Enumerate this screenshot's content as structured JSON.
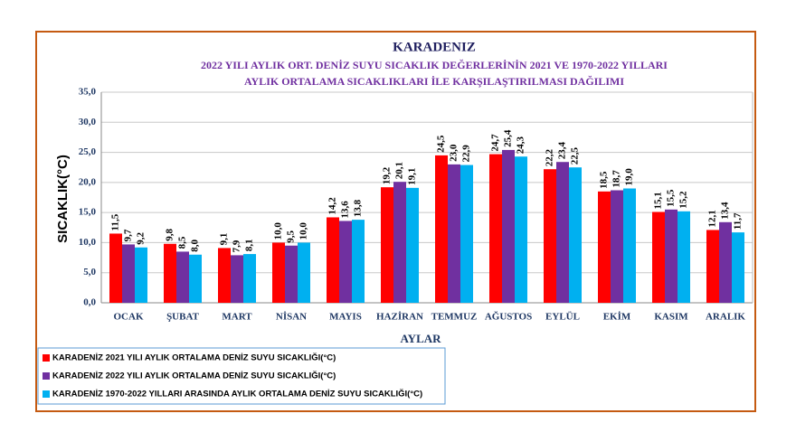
{
  "chart_data": {
    "type": "bar",
    "title": "KARADENIZ",
    "subtitle": [
      "2022 YILI AYLIK ORT. DENİZ SUYU SICAKLIK DEĞERLERİNİN 2021 VE 1970-2022  YILLARI",
      "AYLIK ORTALAMA SICAKLIKLARI İLE KARŞILAŞTIRILMASI DAĞILIMI"
    ],
    "x_label": "AYLAR",
    "y_label": "SICAKLIK(°C)",
    "categories": [
      "OCAK",
      "ŞUBAT",
      "MART",
      "NİSAN",
      "MAYIS",
      "HAZİRAN",
      "TEMMUZ",
      "AĞUSTOS",
      "EYLÜL",
      "EKİM",
      "KASIM",
      "ARALIK"
    ],
    "series": [
      {
        "name": "KARADENİZ  2021 YILI AYLIK ORTALAMA DENİZ SUYU SICAKLIĞI(°C)",
        "color": "#ff0000",
        "values": [
          11.5,
          9.8,
          9.1,
          10.0,
          14.2,
          19.2,
          24.5,
          24.7,
          22.2,
          18.5,
          15.1,
          12.1
        ],
        "value_labels": [
          "11,5",
          "9,8",
          "9,1",
          "10,0",
          "14,2",
          "19,2",
          "24,5",
          "24,7",
          "22,2",
          "18,5",
          "15,1",
          "12,1"
        ]
      },
      {
        "name": "KARADENİZ 2022 YILI AYLIK ORTALAMA DENİZ SUYU SICAKLIĞI(°C)",
        "color": "#7030a0",
        "values": [
          9.7,
          8.5,
          7.9,
          9.5,
          13.6,
          20.1,
          23.0,
          25.4,
          23.4,
          18.7,
          15.5,
          13.4
        ],
        "value_labels": [
          "9,7",
          "8,5",
          "7,9",
          "9,5",
          "13,6",
          "20,1",
          "23,0",
          "25,4",
          "23,4",
          "18,7",
          "15,5",
          "13,4"
        ]
      },
      {
        "name": "KARADENİZ  1970-2022 YILLARI ARASINDA AYLIK ORTALAMA DENİZ SUYU SICAKLIĞI(°C)",
        "color": "#00b0f0",
        "values": [
          9.2,
          8.0,
          8.1,
          10.0,
          13.8,
          19.1,
          22.9,
          24.3,
          22.5,
          19.0,
          15.2,
          11.7
        ],
        "value_labels": [
          "9,2",
          "8,0",
          "8,1",
          "10,0",
          "13,8",
          "19,1",
          "22,9",
          "24,3",
          "22,5",
          "19,0",
          "15,2",
          "11,7"
        ]
      }
    ],
    "ylim": [
      0,
      35
    ],
    "yticks": [
      {
        "value": 0,
        "label": "0,0"
      },
      {
        "value": 5,
        "label": "5,0"
      },
      {
        "value": 10,
        "label": "10,0"
      },
      {
        "value": 15,
        "label": "15,0"
      },
      {
        "value": 20,
        "label": "20,0"
      },
      {
        "value": 25,
        "label": "25,0"
      },
      {
        "value": 30,
        "label": "30,0"
      },
      {
        "value": 35,
        "label": "35,0"
      }
    ],
    "grid": true
  }
}
